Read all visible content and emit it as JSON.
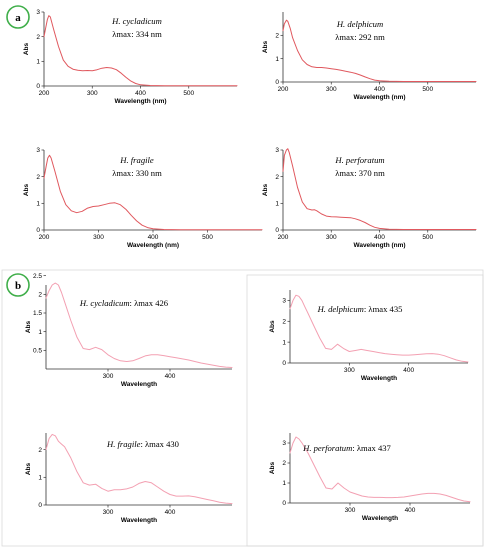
{
  "colors": {
    "curve_a": "#e0585e",
    "curve_b": "#f3a0b2"
  },
  "panels": [
    {
      "id": "a",
      "label": "a"
    },
    {
      "id": "b",
      "label": "b"
    }
  ],
  "chart_data": [
    {
      "type": "line",
      "panel": "a",
      "name": "H. cycladicum",
      "lmax": "λmax: 334 nm",
      "xlabel": "Wavelength (nm)",
      "ylabel": "Abs",
      "xlim": [
        200,
        600
      ],
      "ylim": [
        0,
        3
      ],
      "xticks": [
        200,
        300,
        400,
        500
      ],
      "yticks": [
        0,
        1,
        2,
        3
      ],
      "grid": false,
      "x": [
        200,
        204,
        207,
        210,
        213,
        220,
        230,
        240,
        250,
        260,
        270,
        280,
        290,
        300,
        310,
        320,
        330,
        340,
        350,
        360,
        370,
        380,
        390,
        400,
        420,
        450,
        500,
        550,
        600
      ],
      "y": [
        2.0,
        2.4,
        2.7,
        2.85,
        2.8,
        2.3,
        1.6,
        1.05,
        0.8,
        0.68,
        0.64,
        0.62,
        0.63,
        0.62,
        0.66,
        0.72,
        0.75,
        0.73,
        0.66,
        0.52,
        0.35,
        0.2,
        0.1,
        0.05,
        0.02,
        0.01,
        0.01,
        0.01,
        0.01
      ]
    },
    {
      "type": "line",
      "panel": "a",
      "name": "H. delphicum",
      "lmax": "λmax: 292 nm",
      "xlabel": "Wavelength (nm)",
      "ylabel": "Abs",
      "xlim": [
        200,
        600
      ],
      "ylim": [
        0,
        3
      ],
      "xticks": [
        200,
        300,
        400,
        500
      ],
      "yticks": [
        0,
        1,
        2
      ],
      "grid": false,
      "x": [
        200,
        203,
        207,
        210,
        215,
        220,
        230,
        240,
        250,
        260,
        270,
        280,
        290,
        300,
        310,
        320,
        330,
        340,
        350,
        360,
        370,
        380,
        390,
        400,
        420,
        450,
        500,
        550,
        600
      ],
      "y": [
        2.2,
        2.5,
        2.65,
        2.6,
        2.3,
        1.9,
        1.35,
        0.95,
        0.75,
        0.65,
        0.62,
        0.62,
        0.6,
        0.57,
        0.54,
        0.5,
        0.46,
        0.42,
        0.37,
        0.3,
        0.22,
        0.14,
        0.08,
        0.05,
        0.03,
        0.02,
        0.02,
        0.02,
        0.02
      ]
    },
    {
      "type": "line",
      "panel": "a",
      "name": "H. fragile",
      "lmax": "λmax: 330 nm",
      "xlabel": "Wavelength (nm)",
      "ylabel": "Abs",
      "xlim": [
        200,
        600
      ],
      "ylim": [
        0,
        3
      ],
      "xticks": [
        200,
        300,
        400,
        500
      ],
      "yticks": [
        0,
        1,
        2,
        3
      ],
      "grid": false,
      "x": [
        200,
        204,
        207,
        210,
        213,
        220,
        230,
        240,
        250,
        260,
        270,
        280,
        290,
        300,
        310,
        320,
        330,
        340,
        350,
        360,
        370,
        380,
        390,
        400,
        420,
        450,
        500,
        550,
        600
      ],
      "y": [
        1.95,
        2.4,
        2.7,
        2.8,
        2.7,
        2.2,
        1.45,
        0.95,
        0.72,
        0.65,
        0.7,
        0.82,
        0.88,
        0.9,
        0.95,
        1.0,
        1.02,
        0.95,
        0.78,
        0.55,
        0.34,
        0.18,
        0.09,
        0.05,
        0.02,
        0.01,
        0.01,
        0.01,
        0.01
      ]
    },
    {
      "type": "line",
      "panel": "a",
      "name": "H. perforatum",
      "lmax": "λmax: 370 nm",
      "xlabel": "Wavelength (nm)",
      "ylabel": "Abs",
      "xlim": [
        200,
        600
      ],
      "ylim": [
        0,
        3
      ],
      "xticks": [
        200,
        300,
        400,
        500
      ],
      "yticks": [
        0,
        1,
        2,
        3
      ],
      "grid": false,
      "x": [
        200,
        203,
        207,
        210,
        213,
        220,
        230,
        240,
        250,
        260,
        265,
        270,
        280,
        290,
        300,
        310,
        320,
        330,
        340,
        350,
        360,
        370,
        380,
        390,
        400,
        420,
        450,
        500,
        550,
        600
      ],
      "y": [
        2.2,
        2.8,
        3.0,
        3.05,
        2.9,
        2.4,
        1.6,
        1.05,
        0.8,
        0.75,
        0.76,
        0.72,
        0.6,
        0.52,
        0.5,
        0.49,
        0.48,
        0.47,
        0.46,
        0.42,
        0.36,
        0.28,
        0.18,
        0.1,
        0.06,
        0.03,
        0.02,
        0.02,
        0.02,
        0.02
      ]
    },
    {
      "type": "line",
      "panel": "b",
      "name": "H. cycladicum",
      "lmax": ": λmax 426",
      "xlabel": "Wavelength",
      "ylabel": "Abs",
      "xlim": [
        200,
        500
      ],
      "ylim": [
        0,
        2.25
      ],
      "xticks": [
        300,
        400
      ],
      "yticks": [
        0.5,
        1,
        1.5,
        2,
        2.5
      ],
      "grid": false,
      "x": [
        200,
        205,
        210,
        215,
        220,
        225,
        230,
        240,
        250,
        260,
        270,
        280,
        290,
        300,
        310,
        320,
        330,
        340,
        350,
        360,
        370,
        380,
        390,
        400,
        410,
        420,
        430,
        440,
        450,
        460,
        470,
        480,
        490,
        500
      ],
      "y": [
        1.9,
        2.1,
        2.25,
        2.3,
        2.25,
        2.05,
        1.8,
        1.3,
        0.85,
        0.55,
        0.52,
        0.58,
        0.52,
        0.38,
        0.28,
        0.22,
        0.2,
        0.22,
        0.28,
        0.35,
        0.38,
        0.38,
        0.36,
        0.33,
        0.3,
        0.27,
        0.24,
        0.2,
        0.16,
        0.13,
        0.1,
        0.07,
        0.05,
        0.04
      ]
    },
    {
      "type": "line",
      "panel": "b",
      "name": "H. delphicum",
      "lmax": ": λmax 435",
      "xlabel": "Wavelength",
      "ylabel": "Abs",
      "xlim": [
        200,
        500
      ],
      "ylim": [
        0,
        3.5
      ],
      "xticks": [
        300,
        400
      ],
      "yticks": [
        0,
        1,
        2,
        3
      ],
      "grid": false,
      "x": [
        200,
        205,
        210,
        215,
        220,
        225,
        230,
        240,
        250,
        260,
        270,
        280,
        290,
        300,
        310,
        320,
        330,
        340,
        350,
        360,
        370,
        380,
        390,
        400,
        410,
        420,
        430,
        440,
        450,
        460,
        470,
        480,
        490,
        500
      ],
      "y": [
        2.6,
        3.0,
        3.25,
        3.2,
        3.0,
        2.7,
        2.4,
        1.8,
        1.2,
        0.7,
        0.65,
        0.9,
        0.7,
        0.55,
        0.6,
        0.65,
        0.6,
        0.55,
        0.5,
        0.45,
        0.42,
        0.4,
        0.38,
        0.38,
        0.4,
        0.42,
        0.44,
        0.45,
        0.42,
        0.35,
        0.25,
        0.15,
        0.08,
        0.05
      ]
    },
    {
      "type": "line",
      "panel": "b",
      "name": "H. fragile",
      "lmax": ": λmax 430",
      "xlabel": "Wavelength",
      "ylabel": "Abs",
      "xlim": [
        200,
        500
      ],
      "ylim": [
        0,
        2.6
      ],
      "xticks": [
        300,
        400
      ],
      "yticks": [
        0,
        1,
        2
      ],
      "grid": false,
      "x": [
        200,
        205,
        210,
        215,
        220,
        225,
        230,
        240,
        250,
        260,
        270,
        280,
        290,
        300,
        310,
        320,
        330,
        340,
        350,
        360,
        370,
        380,
        390,
        400,
        410,
        420,
        430,
        440,
        450,
        460,
        470,
        480,
        490,
        500
      ],
      "y": [
        2.0,
        2.4,
        2.55,
        2.5,
        2.3,
        2.2,
        2.1,
        1.7,
        1.2,
        0.8,
        0.72,
        0.75,
        0.6,
        0.5,
        0.55,
        0.55,
        0.58,
        0.65,
        0.78,
        0.85,
        0.8,
        0.65,
        0.5,
        0.38,
        0.32,
        0.32,
        0.33,
        0.3,
        0.25,
        0.2,
        0.15,
        0.1,
        0.07,
        0.05
      ]
    },
    {
      "type": "line",
      "panel": "b",
      "name": "H. perforatum",
      "lmax": ": λmax 437",
      "xlabel": "Wavelength",
      "ylabel": "Abs",
      "xlim": [
        200,
        500
      ],
      "ylim": [
        0,
        3.5
      ],
      "xticks": [
        300,
        400
      ],
      "yticks": [
        0,
        1,
        2,
        3
      ],
      "grid": false,
      "x": [
        200,
        205,
        210,
        215,
        220,
        225,
        230,
        240,
        250,
        260,
        270,
        280,
        290,
        300,
        310,
        320,
        330,
        340,
        350,
        360,
        370,
        380,
        390,
        400,
        410,
        420,
        430,
        440,
        450,
        460,
        470,
        480,
        490,
        500
      ],
      "y": [
        2.5,
        3.0,
        3.3,
        3.2,
        3.0,
        2.75,
        2.5,
        1.9,
        1.3,
        0.75,
        0.7,
        1.0,
        0.75,
        0.55,
        0.45,
        0.35,
        0.3,
        0.28,
        0.28,
        0.27,
        0.27,
        0.28,
        0.3,
        0.35,
        0.4,
        0.45,
        0.48,
        0.48,
        0.45,
        0.38,
        0.28,
        0.18,
        0.1,
        0.06
      ]
    }
  ]
}
